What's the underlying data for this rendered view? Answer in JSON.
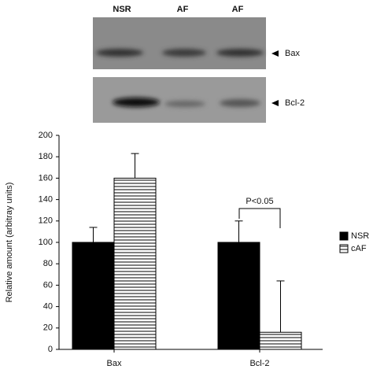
{
  "blot": {
    "lanes": [
      "NSR",
      "AF",
      "AF"
    ],
    "bands": [
      "Bax",
      "Bcl-2"
    ]
  },
  "chart_data": {
    "type": "bar",
    "y_label": "Relative amount (arbitray units)",
    "categories": [
      "Bax",
      "Bcl-2"
    ],
    "series": [
      {
        "name": "NSR",
        "color": "#000000",
        "hatch": false,
        "values": [
          100,
          100
        ],
        "errors": [
          14,
          20
        ]
      },
      {
        "name": "cAF",
        "color": "#ffffff",
        "hatch": true,
        "values": [
          160,
          16
        ],
        "errors": [
          23,
          48
        ]
      }
    ],
    "annotation": "P<0.05",
    "ylim": [
      0,
      200
    ],
    "yticks": [
      0,
      20,
      40,
      60,
      80,
      100,
      120,
      140,
      160,
      180,
      200
    ],
    "legend": "right"
  }
}
